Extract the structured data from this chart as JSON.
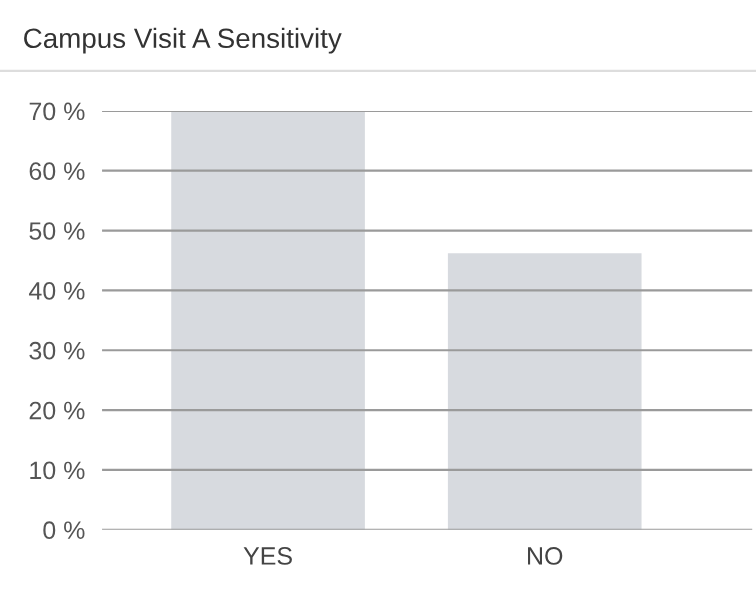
{
  "chart_data": {
    "type": "bar",
    "title": "Campus Visit A Sensitivity",
    "categories": [
      "YES",
      "NO"
    ],
    "values": [
      70,
      46.2
    ],
    "color": "#d7dadf",
    "ylim": [
      0,
      70
    ],
    "yticks": [
      {
        "value": 0,
        "label": "0 %"
      },
      {
        "value": 10,
        "label": "10 %"
      },
      {
        "value": 20,
        "label": "20 %"
      },
      {
        "value": 30,
        "label": "30 %"
      },
      {
        "value": 40,
        "label": "40 %"
      },
      {
        "value": 50,
        "label": "50 %"
      },
      {
        "value": 60,
        "label": "60 %"
      },
      {
        "value": 70,
        "label": "70 %"
      }
    ],
    "grid": "y"
  }
}
